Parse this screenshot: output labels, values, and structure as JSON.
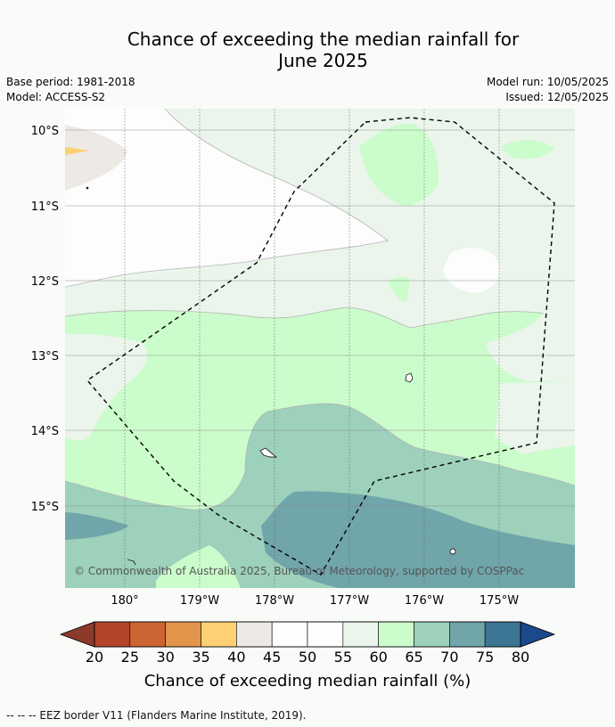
{
  "title_line1": "Chance of exceeding the median rainfall for",
  "title_line2": "June 2025",
  "meta": {
    "base_period": "Base period: 1981-2018",
    "model": "Model: ACCESS-S2",
    "model_run": "Model run: 10/05/2025",
    "issued": "Issued: 12/05/2025"
  },
  "map": {
    "latitude_labels": [
      "10°S",
      "11°S",
      "12°S",
      "13°S",
      "14°S",
      "15°S"
    ],
    "longitude_labels": [
      "180°",
      "179°W",
      "178°W",
      "177°W",
      "176°W",
      "175°W"
    ],
    "copyright": "© Commonwealth of Australia 2025, Bureau of Meteorology, supported by COSPPac",
    "colors": {
      "pct_35_40": "#fdd073",
      "pct_40_45": "#ede9e4",
      "pct_45_55": "#fcfdfc",
      "pct_55_60": "#ebf5eb",
      "pct_60_65": "#cbfccb",
      "pct_65_70": "#9dd1bb",
      "pct_70_75": "#70a5aa"
    }
  },
  "colorbar": {
    "title": "Chance of exceeding median rainfall (%)",
    "ticks": [
      "20",
      "25",
      "30",
      "35",
      "40",
      "45",
      "50",
      "55",
      "60",
      "65",
      "70",
      "75",
      "80"
    ],
    "colors": [
      "#b2442a",
      "#cc6433",
      "#e2954b",
      "#fdd073",
      "#ede9e4",
      "#fcfdfc",
      "#fcfdfc",
      "#ebf5eb",
      "#cbfccb",
      "#9dd1bb",
      "#70a5aa",
      "#3d7594"
    ],
    "extend_low_color": "#8c3a29",
    "extend_high_color": "#1a4a8c"
  },
  "footnote": "--  --  -- EEZ border V11 (Flanders Marine Institute, 2019)."
}
